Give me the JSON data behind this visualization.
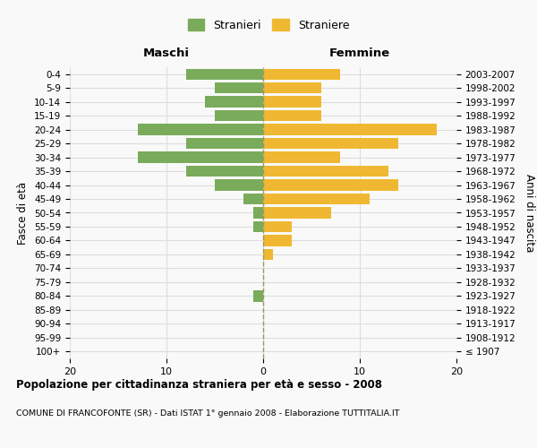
{
  "age_groups": [
    "100+",
    "95-99",
    "90-94",
    "85-89",
    "80-84",
    "75-79",
    "70-74",
    "65-69",
    "60-64",
    "55-59",
    "50-54",
    "45-49",
    "40-44",
    "35-39",
    "30-34",
    "25-29",
    "20-24",
    "15-19",
    "10-14",
    "5-9",
    "0-4"
  ],
  "birth_years": [
    "≤ 1907",
    "1908-1912",
    "1913-1917",
    "1918-1922",
    "1923-1927",
    "1928-1932",
    "1933-1937",
    "1938-1942",
    "1943-1947",
    "1948-1952",
    "1953-1957",
    "1958-1962",
    "1963-1967",
    "1968-1972",
    "1973-1977",
    "1978-1982",
    "1983-1987",
    "1988-1992",
    "1993-1997",
    "1998-2002",
    "2003-2007"
  ],
  "males": [
    0,
    0,
    0,
    0,
    1,
    0,
    0,
    0,
    0,
    1,
    1,
    2,
    5,
    8,
    13,
    8,
    13,
    5,
    6,
    5,
    8
  ],
  "females": [
    0,
    0,
    0,
    0,
    0,
    0,
    0,
    1,
    3,
    3,
    7,
    11,
    14,
    13,
    8,
    14,
    18,
    6,
    6,
    6,
    8
  ],
  "male_color": "#7aab5a",
  "female_color": "#f0b832",
  "male_label": "Stranieri",
  "female_label": "Straniere",
  "title": "Popolazione per cittadinanza straniera per età e sesso - 2008",
  "subtitle": "COMUNE DI FRANCOFONTE (SR) - Dati ISTAT 1° gennaio 2008 - Elaborazione TUTTITALIA.IT",
  "xlabel_left": "Maschi",
  "xlabel_right": "Femmine",
  "ylabel_left": "Fasce di età",
  "ylabel_right": "Anni di nascita",
  "xlim": 20,
  "xticks": [
    -20,
    -10,
    0,
    10,
    20
  ],
  "xticklabels": [
    "20",
    "10",
    "0",
    "10",
    "20"
  ],
  "background_color": "#f9f9f9",
  "grid_color": "#dddddd",
  "centerline_color": "#999966"
}
